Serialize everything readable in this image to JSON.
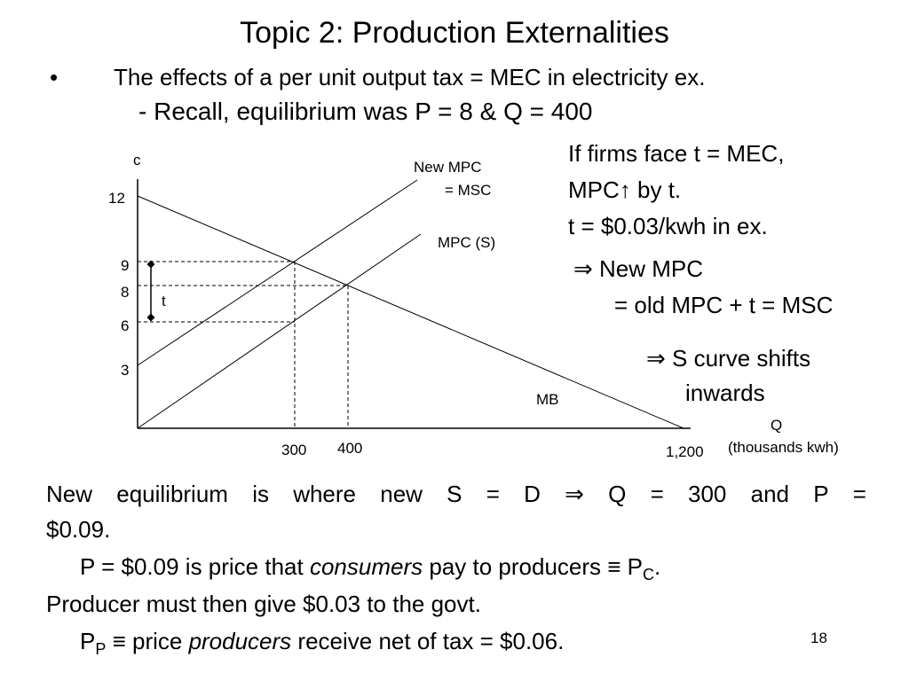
{
  "slide": {
    "title": "Topic 2: Production Externalities",
    "bullet_symbol": "•",
    "bullet_text": "The effects of a per unit output tax = MEC in electricity ex.",
    "recall_text": "- Recall, equilibrium was P = 8 & Q = 400",
    "page_number": "18"
  },
  "notes": {
    "line1": "If firms face t = MEC,",
    "line2_pre": "MPC",
    "line2_arrow": "↑",
    "line2_post": " by t.",
    "line3": "t = $0.03/kwh in ex.",
    "line4_symbol": "⇒",
    "line4_text": " New MPC",
    "line5": "= old MPC + t = MSC",
    "line6_symbol": "⇒",
    "line6_text": " S curve shifts",
    "line7": "inwards"
  },
  "graph": {
    "y_axis_label": "c",
    "x_axis_label": "Q",
    "x_axis_unit": "(thousands kwh)",
    "y_ticks": [
      "12",
      "9",
      "8",
      "6",
      "3"
    ],
    "x_ticks": [
      "300",
      "400",
      "1,200"
    ],
    "curves": {
      "new_mpc_line1": "New MPC",
      "new_mpc_line2": "= MSC",
      "mpc": "MPC (S)",
      "mb": "MB"
    },
    "tax_label": "t"
  },
  "bottom": {
    "words": [
      "New",
      "equilibrium",
      "is",
      "where",
      "new",
      "S",
      "=",
      "D",
      "⇒",
      "Q",
      "=",
      "300",
      "and",
      "P",
      "="
    ],
    "line2": "$0.09.",
    "line3_pre": "P = $0.09 is price that ",
    "line3_em": "consumers",
    "line3_post": " pay to producers ≡ P",
    "line3_sub": "C",
    "line3_end": ".",
    "line4": "Producer must then give $0.03 to the govt.",
    "line5_p": "P",
    "line5_sub": "P",
    "line5_mid": " ≡ price ",
    "line5_em": "producers",
    "line5_post": " receive net of tax = $0.06."
  }
}
